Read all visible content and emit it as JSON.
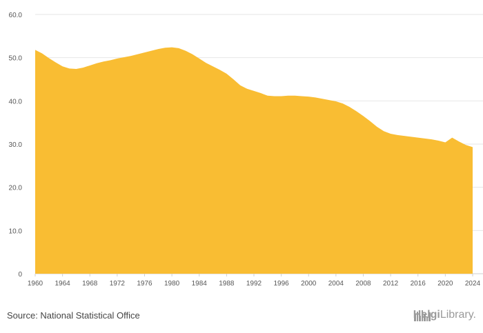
{
  "chart_data": {
    "type": "area",
    "x": [
      1960,
      1961,
      1962,
      1963,
      1964,
      1965,
      1966,
      1967,
      1968,
      1969,
      1970,
      1971,
      1972,
      1973,
      1974,
      1975,
      1976,
      1977,
      1978,
      1979,
      1980,
      1981,
      1982,
      1983,
      1984,
      1985,
      1986,
      1987,
      1988,
      1989,
      1990,
      1991,
      1992,
      1993,
      1994,
      1995,
      1996,
      1997,
      1998,
      1999,
      2000,
      2001,
      2002,
      2003,
      2004,
      2005,
      2006,
      2007,
      2008,
      2009,
      2010,
      2011,
      2012,
      2013,
      2014,
      2015,
      2016,
      2017,
      2018,
      2019,
      2020,
      2021,
      2022,
      2023,
      2024
    ],
    "values": [
      51.8,
      51.0,
      49.9,
      48.9,
      48.0,
      47.5,
      47.4,
      47.7,
      48.2,
      48.7,
      49.1,
      49.4,
      49.8,
      50.1,
      50.4,
      50.8,
      51.2,
      51.6,
      52.0,
      52.3,
      52.4,
      52.2,
      51.6,
      50.8,
      49.8,
      48.8,
      48.0,
      47.2,
      46.3,
      45.0,
      43.6,
      42.8,
      42.3,
      41.8,
      41.2,
      41.1,
      41.1,
      41.2,
      41.2,
      41.1,
      41.0,
      40.8,
      40.5,
      40.2,
      39.9,
      39.4,
      38.6,
      37.6,
      36.5,
      35.3,
      34.0,
      33.0,
      32.4,
      32.1,
      31.9,
      31.7,
      31.5,
      31.3,
      31.1,
      30.8,
      30.4,
      31.5,
      30.6,
      29.8,
      29.3
    ],
    "x_tick_labels": [
      "1960",
      "1964",
      "1968",
      "1972",
      "1976",
      "1980",
      "1984",
      "1988",
      "1992",
      "1996",
      "2000",
      "2004",
      "2008",
      "2012",
      "2016",
      "2020",
      "2024"
    ],
    "y_tick_labels": [
      "0",
      "10.0",
      "20.0",
      "30.0",
      "40.0",
      "50.0",
      "60.0"
    ],
    "y_ticks": [
      0,
      10,
      20,
      30,
      40,
      50,
      60
    ],
    "xlim": [
      1960,
      2024
    ],
    "ylim": [
      0,
      60
    ],
    "grid": true,
    "fill_color": "#f9bd33",
    "title": "",
    "xlabel": "",
    "ylabel": ""
  },
  "footer": {
    "source": "Source: National Statistical Office",
    "brand_prefix": "Helgi",
    "brand_suffix": "Library."
  },
  "colors": {
    "area": "#f9bd33",
    "grid": "#e6e6e6",
    "brand": "#9a9a9a"
  },
  "icons": {
    "brand_logo": "city-skyline-icon"
  }
}
